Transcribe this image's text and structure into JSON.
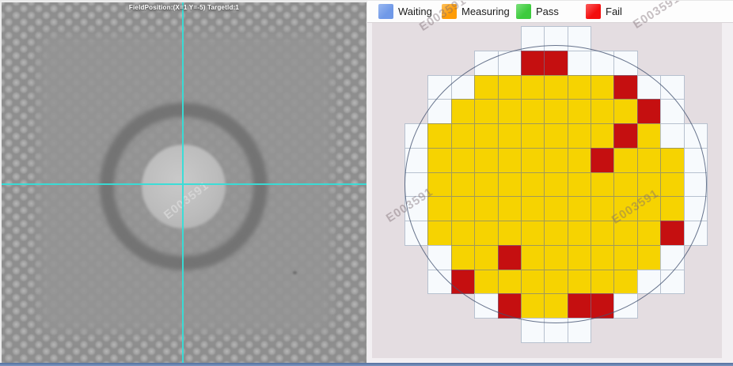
{
  "camera_view": {
    "overlay_text": "FieldPosition:(X=1 Y=-5) TargetId:1",
    "watermark": "E003591"
  },
  "legend": {
    "items": [
      {
        "label": "Waiting",
        "color": "#7099e8",
        "color_light": "#9ab8f0"
      },
      {
        "label": "Measuring",
        "color": "#ff9c05",
        "color_light": "#ffc25e"
      },
      {
        "label": "Pass",
        "color": "#3dcb3d",
        "color_light": "#7ce07c"
      },
      {
        "label": "Fail",
        "color": "#f30d0d",
        "color_light": "#fb5c5c"
      }
    ]
  },
  "wafer_map": {
    "watermark": "E003591",
    "rows": 13,
    "cols": 13,
    "legend_key": {
      "_": "empty",
      "w": "waiting",
      "y": "measured",
      "r": "fail"
    },
    "grid": [
      "_____www_____",
      "___wwrrwww___",
      "_wwyyyyyyrww_",
      "_wyyyyyyyyrw_",
      "wyyyyyyyyryww",
      "wyyyyyyyryyyw",
      "wyyyyyyyyyyyw",
      "wyyyyyyyyyyyw",
      "wyyyyyyyyyyrw",
      "_wyyryyyyyyw_",
      "_wryyyyyyyww_",
      "___wryyrrw___",
      "_____www_____"
    ],
    "colors": {
      "measured": "#f6d301",
      "fail": "#c50f10",
      "waiting": "#f7fafd",
      "background": "#e4dde1",
      "wafer_outline": "#46526f"
    }
  }
}
